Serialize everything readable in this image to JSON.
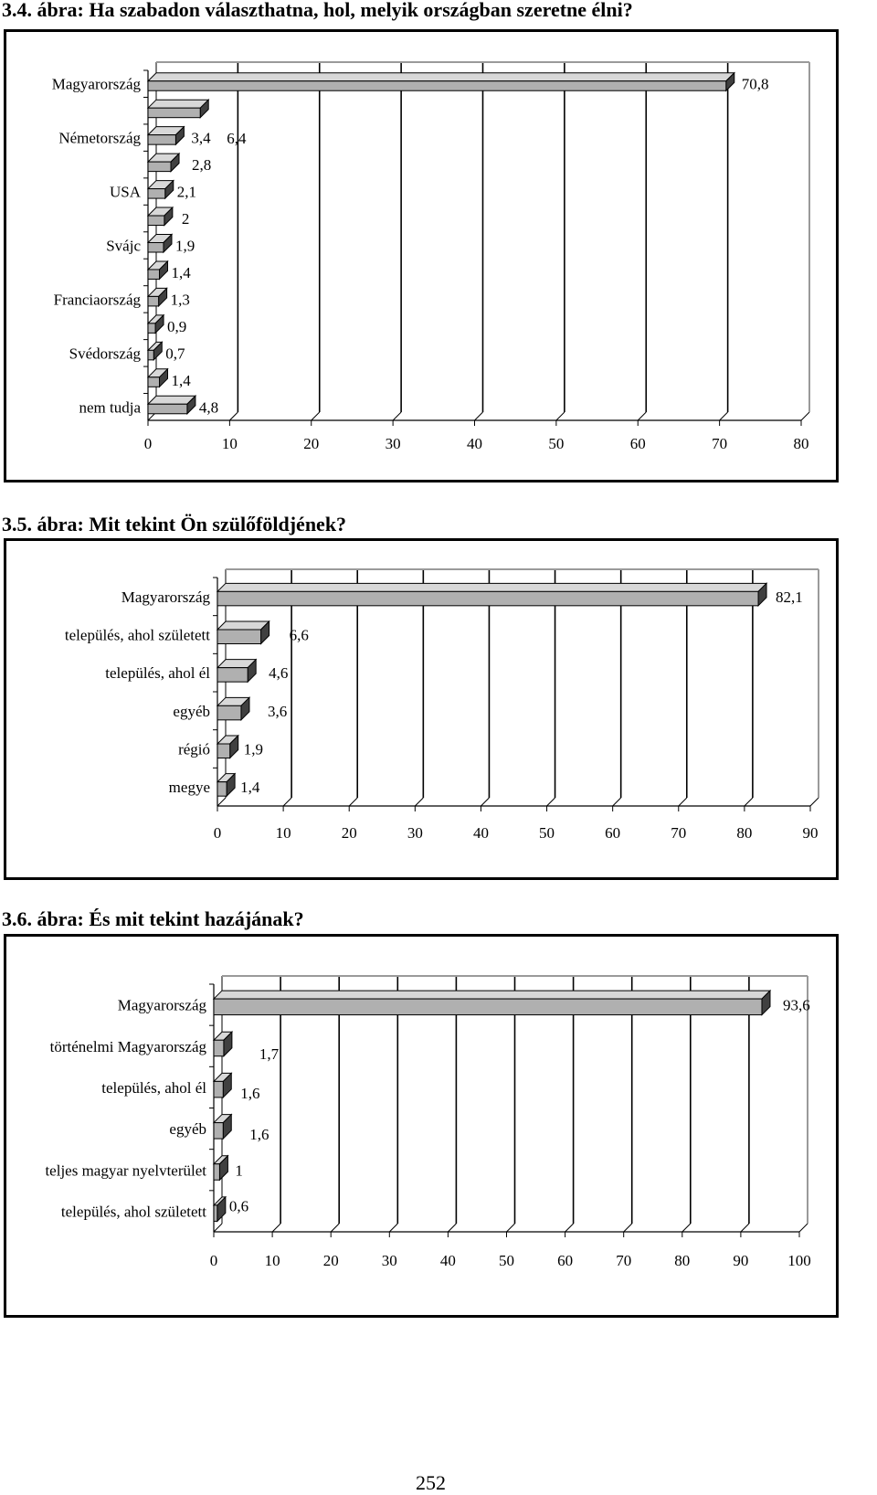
{
  "page_number": "252",
  "chart_data": [
    {
      "type": "bar",
      "title": "3.4. ábra: Ha szabadon választhatna, hol, melyik országban szeretne élni?",
      "orientation": "horizontal",
      "categories": [
        "Magyarország",
        "",
        "Németország",
        "",
        "USA",
        "",
        "Svájc",
        "",
        "Franciaország",
        "",
        "Svédország",
        "",
        "nem tudja"
      ],
      "values": [
        70.8,
        6.4,
        3.4,
        2.8,
        2.1,
        2,
        1.9,
        1.4,
        1.3,
        0.9,
        0.7,
        1.4,
        4.8
      ],
      "value_labels": [
        "70,8",
        "6,4",
        "3,4",
        "2,8",
        "2,1",
        "2",
        "1,9",
        "1,4",
        "1,3",
        "0,9",
        "0,7",
        "1,4",
        "4,8"
      ],
      "xlim": [
        0,
        80
      ],
      "xticks": [
        "0",
        "10",
        "20",
        "30",
        "40",
        "50",
        "60",
        "70",
        "80"
      ],
      "grid": true,
      "bar_color": "#b0b0b0"
    },
    {
      "type": "bar",
      "title": "3.5. ábra: Mit tekint Ön szülőföldjének?",
      "orientation": "horizontal",
      "categories": [
        "Magyarország",
        "település, ahol született",
        "település, ahol él",
        "egyéb",
        "régió",
        "megye"
      ],
      "values": [
        82.1,
        6.6,
        4.6,
        3.6,
        1.9,
        1.4
      ],
      "value_labels": [
        "82,1",
        "6,6",
        "4,6",
        "3,6",
        "1,9",
        "1,4"
      ],
      "xlim": [
        0,
        90
      ],
      "xticks": [
        "0",
        "10",
        "20",
        "30",
        "40",
        "50",
        "60",
        "70",
        "80",
        "90"
      ],
      "grid": true,
      "bar_color": "#b0b0b0"
    },
    {
      "type": "bar",
      "title": "3.6. ábra: És mit tekint hazájának?",
      "orientation": "horizontal",
      "categories": [
        "Magyarország",
        "történelmi Magyarország",
        "település, ahol él",
        "egyéb",
        "teljes magyar nyelvterület",
        "település, ahol született"
      ],
      "values": [
        93.6,
        1.7,
        1.6,
        1.6,
        1,
        0.6
      ],
      "value_labels": [
        "93,6",
        "1,7",
        "1,6",
        "1,6",
        "1",
        "0,6"
      ],
      "xlim": [
        0,
        100
      ],
      "xticks": [
        "0",
        "10",
        "20",
        "30",
        "40",
        "50",
        "60",
        "70",
        "80",
        "90",
        "100"
      ],
      "grid": true,
      "bar_color": "#b0b0b0"
    }
  ]
}
